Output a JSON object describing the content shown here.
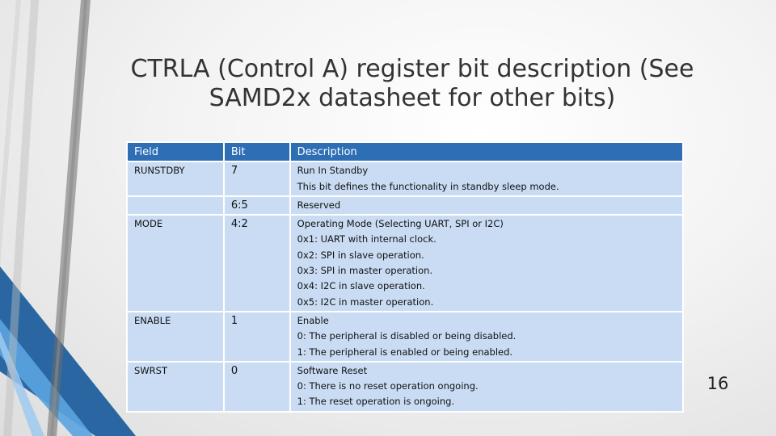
{
  "slide": {
    "title_line1": "CTRLA (Control A) register bit description (See",
    "title_line2": "SAMD2x datasheet for other bits)",
    "page_number": "16"
  },
  "table": {
    "headers": [
      "Field",
      "Bit",
      "Description"
    ],
    "rows": [
      {
        "field": "RUNSTDBY",
        "bit": "7",
        "desc": [
          "Run In Standby",
          "This bit defines the functionality in standby sleep mode."
        ]
      },
      {
        "field": "",
        "bit": "6:5",
        "desc": [
          "Reserved"
        ]
      },
      {
        "field": "MODE",
        "bit": "4:2",
        "desc": [
          "Operating Mode (Selecting UART, SPI or I2C)",
          "0x1: UART with internal clock.",
          "0x2: SPI in slave operation.",
          "0x3: SPI in master operation.",
          "0x4: I2C in slave operation.",
          "0x5: I2C in master operation."
        ]
      },
      {
        "field": "ENABLE",
        "bit": "1",
        "desc": [
          "Enable",
          "0: The peripheral is disabled or being disabled.",
          "1: The peripheral is enabled or being enabled."
        ]
      },
      {
        "field": "SWRST",
        "bit": "0",
        "desc": [
          "Software Reset",
          "0: There is no reset operation ongoing.",
          "1: The reset operation is ongoing."
        ]
      }
    ]
  },
  "colors": {
    "header_bg": "#2e6eb5",
    "cell_bg": "#c9dcf3",
    "accent_light": "#5aa4df",
    "accent_dark": "#2a6db0"
  }
}
